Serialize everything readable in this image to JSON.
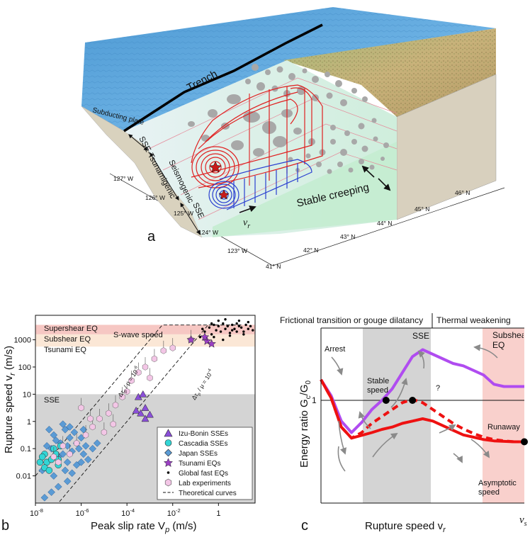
{
  "panel_a": {
    "letter": "a",
    "labels": {
      "trench": "Trench",
      "subducting_plate": "Subducting plate",
      "zone_tsunamigenic": "SSE-Tsunamigenic",
      "zone_seismogenic": "Seismogenic",
      "zone_sse": "SSE",
      "stable_creeping": "Stable creeping",
      "rupture_speed_symbol": "v",
      "rupture_speed_sub": "r"
    },
    "longitudes": [
      "127° W",
      "126° W",
      "125° W",
      "124° W",
      "123° W"
    ],
    "latitudes": [
      "46° N",
      "45° N",
      "44° N",
      "43° N",
      "42° N",
      "41° N"
    ],
    "colors": {
      "sea": "#5aa7dc",
      "fault_plane": "#dcefe3",
      "asperity": "#a8a8a8",
      "eq_contour": "#e02020",
      "sse_contour": "#2a3fd0",
      "crust": "#ddd6c4"
    }
  },
  "chart_data": [
    {
      "type": "scatter",
      "panel": "b",
      "xlabel": "Peak slip rate V",
      "xlabel_sub": "p",
      "xlabel_unit": " (m/s)",
      "ylabel": "Rupture speed v",
      "ylabel_sub": "r",
      "ylabel_unit": " (m/s)",
      "xscale": "log",
      "yscale": "log",
      "xlim_exp": [
        -8,
        1.6
      ],
      "ylim_exp": [
        -3,
        3.9
      ],
      "x_ticks": [
        {
          "exp": -8,
          "base": "10",
          "sup": "-8"
        },
        {
          "exp": -6,
          "base": "10",
          "sup": "-6"
        },
        {
          "exp": -4,
          "base": "10",
          "sup": "-4"
        },
        {
          "exp": -2,
          "base": "10",
          "sup": "-2"
        },
        {
          "exp": 0,
          "base": "1",
          "sup": ""
        }
      ],
      "y_ticks": [
        {
          "exp": -2,
          "label": "0.01"
        },
        {
          "exp": -1,
          "label": "0.1"
        },
        {
          "exp": 0,
          "label": "1"
        },
        {
          "exp": 1,
          "label": "10"
        },
        {
          "exp": 2,
          "label": "100"
        },
        {
          "exp": 3,
          "label": "1000"
        }
      ],
      "regimes": [
        {
          "label": "Supershear EQ",
          "y_range_exp": [
            3.55,
            3.9
          ],
          "color": "#ffffff"
        },
        {
          "label": "Subshear EQ",
          "y_range_exp": [
            3.2,
            3.55
          ],
          "color": "#f6c7c3"
        },
        {
          "label": "Tsunami EQ",
          "y_range_exp": [
            2.75,
            3.2
          ],
          "color": "#fbe7d6"
        },
        {
          "label": "SSE",
          "y_range_exp": [
            -3,
            1
          ],
          "color": "#d4d4d4"
        }
      ],
      "shear_wave_label": "S-wave speed",
      "theoretical_curves": [
        {
          "label": "Δτ",
          "label_sub": "p",
          "label_rest": " / μ = 10",
          "label_sup": "-6",
          "shift_exp": 0
        },
        {
          "label": "Δτ",
          "label_sub": "p",
          "label_rest": " / μ = 10",
          "label_sup": "-4",
          "shift_exp": 2
        }
      ],
      "series": [
        {
          "name": "Izu-Bonin SSEs",
          "marker": "triangle",
          "color": "#8a4fd8",
          "points": [
            [
              -3.5,
              0.9
            ],
            [
              -3.3,
              1.0
            ],
            [
              -3.6,
              0.4
            ],
            [
              -3.2,
              0.5
            ],
            [
              -3.4,
              0.3
            ],
            [
              -3.0,
              0.25
            ],
            [
              -3.2,
              0.1
            ]
          ]
        },
        {
          "name": "Cascadia SSEs",
          "marker": "circle",
          "color": "#33d6d6",
          "points": [
            [
              -7.8,
              -1.5
            ],
            [
              -7.6,
              -1.2
            ],
            [
              -7.5,
              -1.5
            ],
            [
              -7.3,
              -1.4
            ],
            [
              -7.2,
              -1.0
            ],
            [
              -7.0,
              -1.6
            ],
            [
              -7.6,
              -1.7
            ],
            [
              -7.1,
              -1.2
            ],
            [
              -6.9,
              -0.9
            ],
            [
              -7.4,
              -1.8
            ],
            [
              -7.7,
              -1.3
            ],
            [
              -7.0,
              -1.4
            ]
          ]
        },
        {
          "name": "Japan SSEs",
          "marker": "diamond",
          "color": "#5b9bd5",
          "points": [
            [
              -7.7,
              -1.8
            ],
            [
              -7.5,
              -1.5
            ],
            [
              -7.3,
              -1.0
            ],
            [
              -7.2,
              -0.5
            ],
            [
              -7.0,
              -1.3
            ],
            [
              -6.9,
              -0.8
            ],
            [
              -6.8,
              -1.2
            ],
            [
              -6.7,
              -0.3
            ],
            [
              -6.6,
              -0.9
            ],
            [
              -6.5,
              -0.6
            ],
            [
              -6.4,
              -1.1
            ],
            [
              -6.3,
              -0.4
            ],
            [
              -6.2,
              -0.8
            ],
            [
              -6.1,
              -1.0
            ],
            [
              -6.0,
              -0.6
            ],
            [
              -5.9,
              -1.2
            ],
            [
              -5.8,
              -0.9
            ],
            [
              -5.7,
              -1.4
            ],
            [
              -5.5,
              -1.0
            ],
            [
              -5.3,
              -0.8
            ],
            [
              -6.8,
              -0.1
            ],
            [
              -6.5,
              -0.2
            ],
            [
              -6.6,
              -1.5
            ],
            [
              -7.1,
              -0.7
            ],
            [
              -7.4,
              -0.3
            ],
            [
              -7.6,
              -2.8
            ],
            [
              -7.3,
              -2.6
            ],
            [
              -7.0,
              -2.4
            ],
            [
              -6.6,
              -2.2
            ],
            [
              -6.4,
              -1.9
            ],
            [
              -6.2,
              -1.6
            ],
            [
              -7.5,
              -0.9
            ],
            [
              -6.0,
              -1.5
            ],
            [
              -5.9,
              -0.3
            ],
            [
              -6.7,
              -1.8
            ],
            [
              -7.2,
              -2.0
            ]
          ]
        },
        {
          "name": "Tsunami EQs",
          "marker": "star",
          "color": "#9b3fc4",
          "points": [
            [
              -1.2,
              3.0
            ],
            [
              -0.5,
              2.95
            ],
            [
              -0.3,
              2.85
            ],
            [
              -0.6,
              3.1
            ]
          ]
        },
        {
          "name": "Global fast EQs",
          "marker": "dot",
          "color": "#000000",
          "points": [
            [
              -0.6,
              3.3
            ],
            [
              -0.4,
              3.45
            ],
            [
              -0.3,
              3.2
            ],
            [
              -0.2,
              3.55
            ],
            [
              -0.1,
              3.35
            ],
            [
              0.0,
              3.5
            ],
            [
              0.1,
              3.3
            ],
            [
              0.2,
              3.6
            ],
            [
              0.3,
              3.4
            ],
            [
              0.4,
              3.5
            ],
            [
              0.5,
              3.25
            ],
            [
              0.6,
              3.55
            ],
            [
              0.7,
              3.4
            ],
            [
              0.8,
              3.3
            ],
            [
              0.9,
              3.5
            ],
            [
              1.0,
              3.45
            ],
            [
              1.1,
              3.3
            ],
            [
              1.2,
              3.55
            ],
            [
              1.3,
              3.4
            ],
            [
              1.4,
              3.5
            ],
            [
              -0.8,
              3.1
            ],
            [
              -0.5,
              3.0
            ],
            [
              0.0,
              3.7
            ],
            [
              0.3,
              3.75
            ],
            [
              0.5,
              3.15
            ],
            [
              0.8,
              3.6
            ],
            [
              1.1,
              3.2
            ],
            [
              1.3,
              3.65
            ],
            [
              -0.2,
              3.1
            ],
            [
              0.6,
              3.35
            ],
            [
              0.9,
              3.7
            ],
            [
              -0.7,
              3.4
            ],
            [
              1.5,
              3.35
            ],
            [
              0.2,
              3.0
            ],
            [
              -0.3,
              3.6
            ]
          ]
        },
        {
          "name": "Lab experiments",
          "marker": "hexagon",
          "color": "#f3c6e6",
          "points": [
            [
              -7.0,
              -1.5
            ],
            [
              -6.5,
              -1.2
            ],
            [
              -6.2,
              -0.8
            ],
            [
              -5.8,
              -0.5
            ],
            [
              -5.5,
              -0.2
            ],
            [
              -5.2,
              0.1
            ],
            [
              -5.0,
              -0.4
            ],
            [
              -4.8,
              0.3
            ],
            [
              -4.5,
              0.6
            ],
            [
              -4.2,
              0.9
            ],
            [
              -4.0,
              1.1
            ],
            [
              -3.8,
              1.5
            ],
            [
              -3.5,
              1.8
            ],
            [
              -3.2,
              2.0
            ],
            [
              -2.8,
              2.3
            ],
            [
              -2.4,
              2.6
            ],
            [
              -2.0,
              2.7
            ],
            [
              -1.2,
              3.0
            ],
            [
              -6.0,
              0.5
            ],
            [
              -5.6,
              0.1
            ],
            [
              -6.8,
              -0.9
            ],
            [
              -7.2,
              -1.3
            ],
            [
              -3.0,
              1.6
            ],
            [
              -4.6,
              -0.1
            ]
          ]
        }
      ],
      "legend": [
        "Izu-Bonin SSEs",
        "Cascadia SSEs",
        "Japan SSEs",
        "Tsunami EQs",
        "Global fast EQs",
        "Lab experiments",
        "Theoretical curves"
      ]
    },
    {
      "type": "line",
      "panel": "c",
      "xlabel": "Rupture speed v",
      "xlabel_sub": "r",
      "ylabel": "Energy ratio G",
      "ylabel_sub1": "c",
      "ylabel_mid": "/G",
      "ylabel_sub2": "0",
      "ytick": "1",
      "x_end_label": "v",
      "x_end_sub": "s",
      "header_left": "Frictional transition or gouge dilatancy",
      "header_right": "Thermal weakening",
      "regime_sse": "SSE",
      "regime_subshear": "Subshear EQ",
      "annotations": [
        "Arrest",
        "Stable speed",
        "?",
        "Runaway",
        "Asymptotic speed"
      ],
      "x": [
        0.0,
        0.05,
        0.1,
        0.15,
        0.2,
        0.25,
        0.3,
        0.35,
        0.4,
        0.45,
        0.5,
        0.55,
        0.6,
        0.65,
        0.7,
        0.75,
        0.8,
        0.85,
        0.9,
        0.95,
        1.0
      ],
      "series": [
        {
          "name": "purple",
          "color": "#b04cf0",
          "style": "solid",
          "values": [
            1.45,
            1.1,
            0.55,
            0.3,
            0.52,
            0.8,
            1.0,
            1.25,
            1.6,
            1.95,
            2.1,
            2.0,
            1.9,
            1.8,
            1.75,
            1.65,
            1.55,
            1.35,
            1.3,
            1.3,
            1.3
          ]
        },
        {
          "name": "red-solid",
          "color": "#ee1111",
          "style": "solid",
          "values": [
            1.45,
            1.05,
            0.42,
            0.18,
            0.24,
            0.3,
            0.37,
            0.42,
            0.5,
            0.55,
            0.6,
            0.55,
            0.45,
            0.35,
            0.25,
            0.2,
            0.15,
            0.12,
            0.11,
            0.1,
            0.1
          ]
        },
        {
          "name": "red-dashed",
          "color": "#ee1111",
          "style": "dashed",
          "values": [
            1.45,
            1.05,
            0.42,
            0.18,
            0.3,
            0.5,
            0.65,
            0.8,
            0.95,
            1.02,
            0.95,
            0.8,
            0.65,
            0.5,
            0.38,
            0.28,
            0.2,
            0.15,
            0.12,
            0.1,
            0.1
          ]
        }
      ],
      "key_points": [
        {
          "name": "Stable speed",
          "x": 0.32,
          "y": 1.0
        },
        {
          "name": "?",
          "x": 0.45,
          "y": 1.0
        },
        {
          "name": "Asymptotic speed",
          "x": 1.0,
          "y": 0.1
        }
      ]
    }
  ],
  "panel_letters": {
    "b": "b",
    "c": "c"
  }
}
